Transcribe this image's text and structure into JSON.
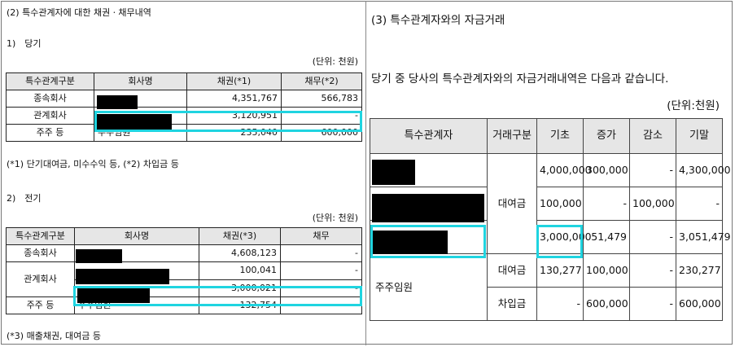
{
  "left": {
    "heading": "(2) 특수관계자에 대한 채권ㆍ채무내역",
    "current": {
      "label": "1)　당기",
      "unit": "(단위: 천원)",
      "headers": [
        "특수관계구분",
        "회사명",
        "채권(*1)",
        "채무(*2)"
      ],
      "rows": [
        {
          "category": "종속회사",
          "company": "",
          "receivable": "4,351,767",
          "payable": "566,783"
        },
        {
          "category": "관계회사",
          "company": "",
          "receivable": "3,120,951",
          "payable": "-"
        },
        {
          "category": "주주 등",
          "company": "주주임원",
          "receivable": "235,040",
          "payable": "600,000"
        }
      ],
      "note": "(*1) 단기대여금, 미수수익 등, (*2) 차입금 등"
    },
    "prior": {
      "label": "2)　전기",
      "unit": "(단위: 천원)",
      "headers": [
        "특수관계구분",
        "회사명",
        "채권(*3)",
        "채무"
      ],
      "rows": [
        {
          "category": "종속회사",
          "company": "",
          "receivable": "4,608,123",
          "payable": "-"
        },
        {
          "category": "관계회사",
          "company": "",
          "receivable": "100,041",
          "payable": "-"
        },
        {
          "category": "",
          "company": "",
          "receivable": "3,000,021",
          "payable": "-"
        },
        {
          "category": "주주 등",
          "company": "주주임원",
          "receivable": "132,754",
          "payable": "-"
        }
      ],
      "note": "(*3) 매출채권, 대여금 등"
    }
  },
  "right": {
    "heading": "(3) 특수관계자와의 자금거래",
    "intro": "당기 중 당사의 특수관계자와의 자금거래내역은 다음과 같습니다.",
    "unit": "(단위:천원)",
    "headers": [
      "특수관계자",
      "거래구분",
      "기초",
      "증가",
      "감소",
      "기말"
    ],
    "loan_label": "대여금",
    "rows": [
      {
        "opening": "4,000,000",
        "increase": "300,000",
        "decrease": "-",
        "closing": "4,300,000"
      },
      {
        "opening": "100,000",
        "increase": "-",
        "decrease": "100,000",
        "closing": "-"
      },
      {
        "opening": "3,000,000",
        "increase": "51,479",
        "decrease": "-",
        "closing": "3,051,479"
      }
    ],
    "shareholder": {
      "name": "주주임원",
      "rows": [
        {
          "type": "대여금",
          "opening": "130,277",
          "increase": "100,000",
          "decrease": "-",
          "closing": "230,277"
        },
        {
          "type": "차입금",
          "opening": "-",
          "increase": "600,000",
          "decrease": "-",
          "closing": "600,000"
        }
      ]
    }
  },
  "colors": {
    "highlight": "#1fd4e0",
    "header_bg": "#e6e6e6",
    "redaction": "#000000"
  }
}
